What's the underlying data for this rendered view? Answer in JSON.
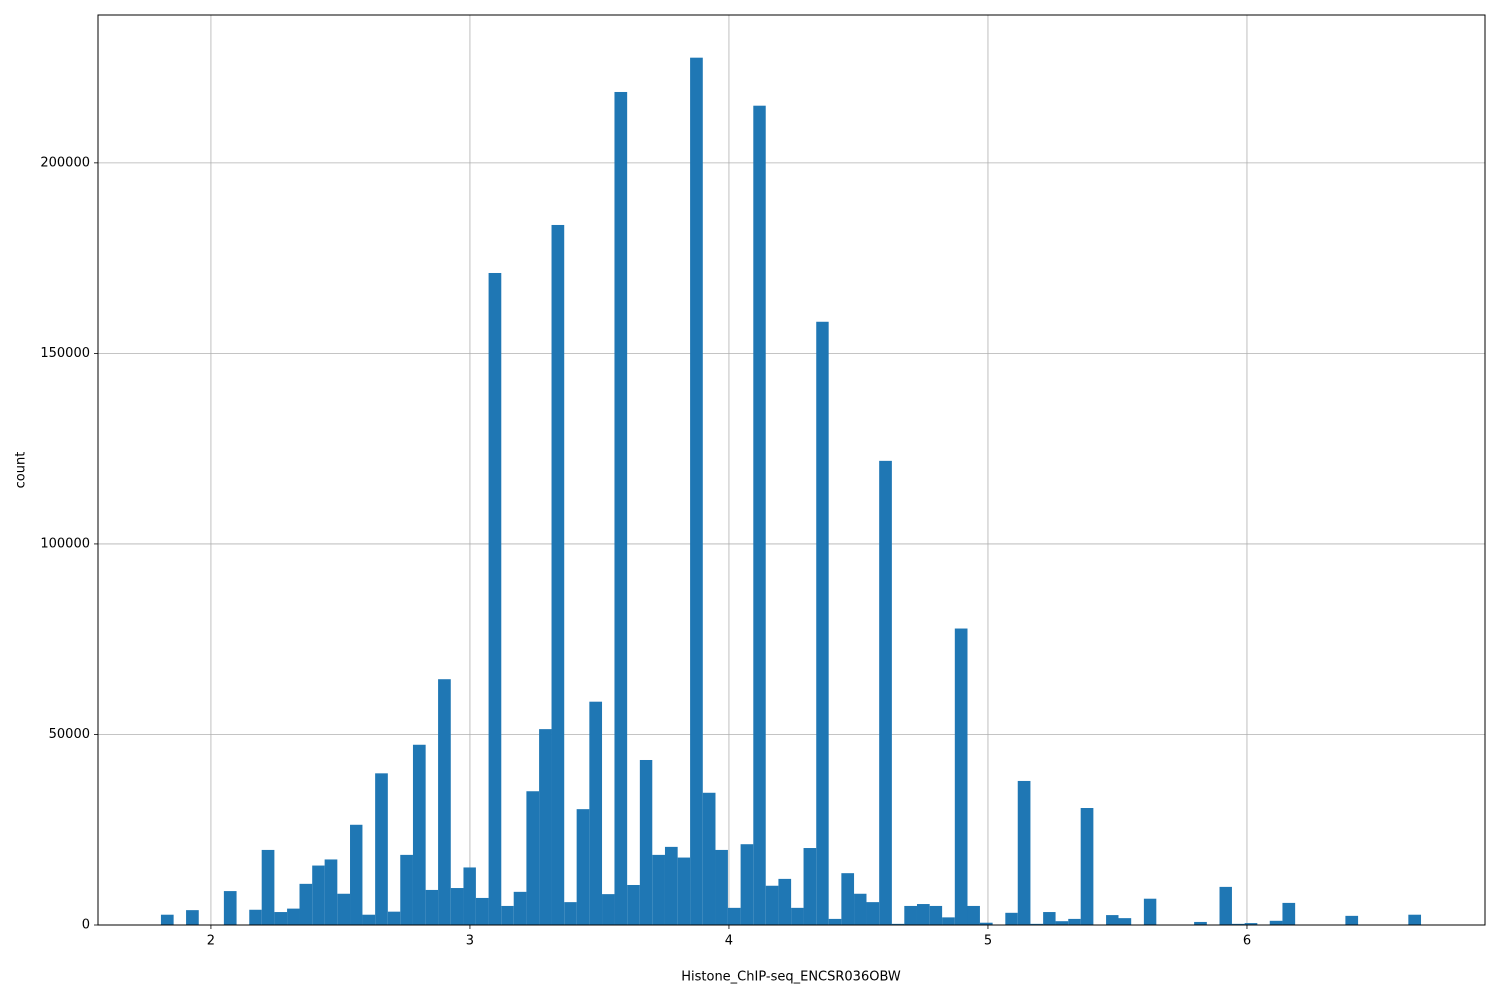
{
  "chart_data": {
    "type": "histogram",
    "x_label": "Histone_ChIP-seq_ENCSR036OBW",
    "y_label": "count",
    "color": "#1f77b4",
    "grid": true,
    "bins": [
      1.807,
      1.856,
      1.904,
      1.953,
      2.002,
      2.05,
      2.099,
      2.148,
      2.196,
      2.245,
      2.294,
      2.342,
      2.391,
      2.439,
      2.488,
      2.537,
      2.585,
      2.634,
      2.683,
      2.731,
      2.78,
      2.829,
      2.877,
      2.926,
      2.975,
      3.023,
      3.072,
      3.121,
      3.169,
      3.218,
      3.267,
      3.315,
      3.364,
      3.412,
      3.461,
      3.51,
      3.558,
      3.607,
      3.656,
      3.704,
      3.753,
      3.802,
      3.85,
      3.899,
      3.948,
      3.996,
      4.045,
      4.094,
      4.142,
      4.191,
      4.24,
      4.288,
      4.337,
      4.385,
      4.434,
      4.483,
      4.531,
      4.58,
      4.629,
      4.677,
      4.726,
      4.775,
      4.823,
      4.872,
      4.921,
      4.969,
      5.018,
      5.067,
      5.115,
      5.164,
      5.213,
      5.261,
      5.31,
      5.358,
      5.407,
      5.456,
      5.504,
      5.553,
      5.602,
      5.65,
      5.699,
      5.748,
      5.796,
      5.845,
      5.894,
      5.942,
      5.991,
      6.04,
      6.088,
      6.137,
      6.186,
      6.234,
      6.283,
      6.331,
      6.38,
      6.429,
      6.477,
      6.526,
      6.575,
      6.623,
      6.672
    ],
    "values": [
      2700,
      0,
      3900,
      0,
      0,
      8900,
      0,
      4000,
      19700,
      3400,
      4300,
      10800,
      15600,
      17200,
      8200,
      26300,
      2700,
      39800,
      3500,
      18400,
      47300,
      9200,
      64500,
      9700,
      15100,
      7100,
      171100,
      5000,
      8700,
      35100,
      51400,
      183700,
      6000,
      30400,
      58600,
      8100,
      218600,
      10500,
      43300,
      18400,
      20500,
      17700,
      227600,
      34700,
      19700,
      4500,
      21200,
      215000,
      10300,
      12100,
      4500,
      20200,
      158300,
      1600,
      13600,
      8200,
      6000,
      121800,
      300,
      5000,
      5500,
      5000,
      2000,
      77800,
      5000,
      600,
      0,
      3200,
      37800,
      300,
      3400,
      1000,
      1600,
      30700,
      0,
      2600,
      1800,
      0,
      6900,
      0,
      0,
      0,
      800,
      0,
      10000,
      300,
      500,
      0,
      1100,
      5800,
      0,
      0,
      0,
      0,
      2400,
      0,
      0,
      0,
      0,
      2700
    ],
    "xlim": [
      1.564,
      6.919
    ],
    "xticks": [
      2,
      3,
      4,
      5,
      6
    ],
    "ylim": [
      0,
      238800
    ],
    "yticks": [
      0,
      50000,
      100000,
      150000,
      200000
    ]
  }
}
